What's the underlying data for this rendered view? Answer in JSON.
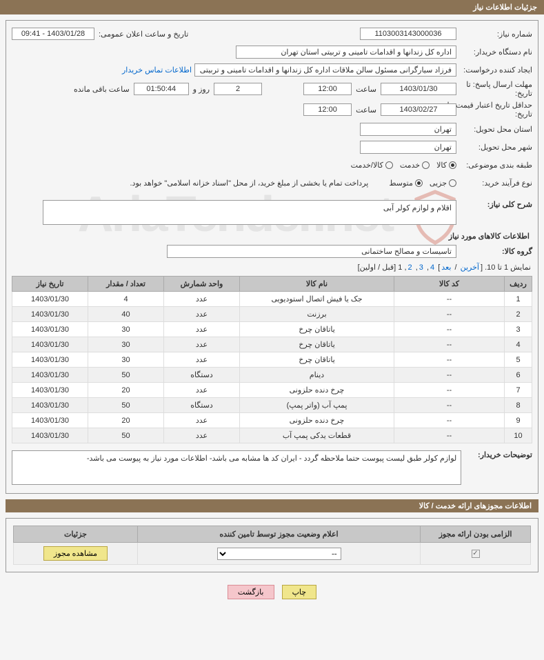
{
  "header": {
    "title": "جزئیات اطلاعات نیاز"
  },
  "labels": {
    "need_no": "شماره نیاز:",
    "announce_dt": "تاریخ و ساعت اعلان عمومی:",
    "buyer_org": "نام دستگاه خریدار:",
    "requester": "ایجاد کننده درخواست:",
    "contact_link": "اطلاعات تماس خریدار",
    "deadline": "مهلت ارسال پاسخ: تا تاریخ:",
    "time_word": "ساعت",
    "days_and": "روز و",
    "time_remain": "ساعت باقی مانده",
    "validity": "حداقل تاریخ اعتبار قیمت: تا تاریخ:",
    "delivery_province": "استان محل تحویل:",
    "delivery_city": "شهر محل تحویل:",
    "category": "طبقه بندی موضوعی:",
    "process_type": "نوع فرآیند خرید:",
    "payment_note": "پرداخت تمام یا بخشی از مبلغ خرید، از محل \"اسناد خزانه اسلامی\" خواهد بود.",
    "need_desc": "شرح کلی نیاز:",
    "goods_info": "اطلاعات کالاهای مورد نیاز",
    "goods_group": "گروه کالا:",
    "buyer_comment": "توضیحات خریدار:",
    "license_header": "اطلاعات مجوزهای ارائه خدمت / کالا",
    "col_mandatory": "الزامی بودن ارائه مجوز",
    "col_status": "اعلام وضعیت مجوز توسط تامین کننده",
    "col_detail": "جزئیات",
    "view_license_btn": "مشاهده مجوز",
    "print_btn": "چاپ",
    "back_btn": "بازگشت"
  },
  "values": {
    "need_no": "1103003143000036",
    "announce_dt": "1403/01/28 - 09:41",
    "buyer_org": "اداره کل زندانها و اقدامات تامینی و تربیتی استان تهران",
    "requester": "فرزاد سیارگرانی مسئول سالن ملاقات  اداره کل زندانها و اقدامات تامینی و تربیتی",
    "deadline_date": "1403/01/30",
    "deadline_time": "12:00",
    "remain_days": "2",
    "remain_time": "01:50:44",
    "validity_date": "1403/02/27",
    "validity_time": "12:00",
    "delivery_province": "تهران",
    "delivery_city": "تهران",
    "need_desc": "اقلام و لوازم کولر آبی",
    "goods_group": "تاسیسات و مصالح ساختمانی",
    "buyer_comment": "لوازم کولر طبق لیست پیوست حتما ملاحظه گردد -  ایران کد ها مشابه می باشد- اطلاعات مورد نیاز به پیوست می باشد-"
  },
  "category_radios": {
    "opt1": "کالا",
    "opt2": "خدمت",
    "opt3": "کالا/خدمت",
    "selected": 1
  },
  "process_radios": {
    "opt1": "جزیی",
    "opt2": "متوسط",
    "selected": 2
  },
  "pager": {
    "text_prefix": "نمایش 1 تا 10. [",
    "last": "آخرین",
    "sep1": " / ",
    "next": "بعد",
    "pages": [
      "4",
      "3",
      "2"
    ],
    "current": "1",
    "sep2": " [قبل / اولین]"
  },
  "table": {
    "headers": {
      "row": "ردیف",
      "code": "کد کالا",
      "name": "نام کالا",
      "unit": "واحد شمارش",
      "qty": "تعداد / مقدار",
      "date": "تاریخ نیاز"
    },
    "rows": [
      {
        "n": "1",
        "code": "--",
        "name": "جک یا فیش اتصال استودیویی",
        "unit": "عدد",
        "qty": "4",
        "date": "1403/01/30"
      },
      {
        "n": "2",
        "code": "--",
        "name": "برزنت",
        "unit": "عدد",
        "qty": "40",
        "date": "1403/01/30"
      },
      {
        "n": "3",
        "code": "--",
        "name": "یاتاقان چرخ",
        "unit": "عدد",
        "qty": "30",
        "date": "1403/01/30"
      },
      {
        "n": "4",
        "code": "--",
        "name": "یاتاقان چرخ",
        "unit": "عدد",
        "qty": "30",
        "date": "1403/01/30"
      },
      {
        "n": "5",
        "code": "--",
        "name": "یاتاقان چرخ",
        "unit": "عدد",
        "qty": "30",
        "date": "1403/01/30"
      },
      {
        "n": "6",
        "code": "--",
        "name": "دینام",
        "unit": "دستگاه",
        "qty": "50",
        "date": "1403/01/30"
      },
      {
        "n": "7",
        "code": "--",
        "name": "چرخ دنده حلزونی",
        "unit": "عدد",
        "qty": "20",
        "date": "1403/01/30"
      },
      {
        "n": "8",
        "code": "--",
        "name": "پمپ آب (واتر پمپ)",
        "unit": "دستگاه",
        "qty": "50",
        "date": "1403/01/30"
      },
      {
        "n": "9",
        "code": "--",
        "name": "چرخ دنده حلزونی",
        "unit": "عدد",
        "qty": "20",
        "date": "1403/01/30"
      },
      {
        "n": "10",
        "code": "--",
        "name": "قطعات یدکی پمپ آب",
        "unit": "عدد",
        "qty": "50",
        "date": "1403/01/30"
      }
    ]
  },
  "license": {
    "mandatory_checked": true,
    "status_placeholder": "--"
  },
  "colors": {
    "header_bg": "#8b7355",
    "th_bg": "#c8c8c8",
    "border": "#999999",
    "link": "#0066cc",
    "btn_yellow": "#f0e68c",
    "btn_pink": "#f5c6cb",
    "page_bg": "#f5f5f5"
  }
}
